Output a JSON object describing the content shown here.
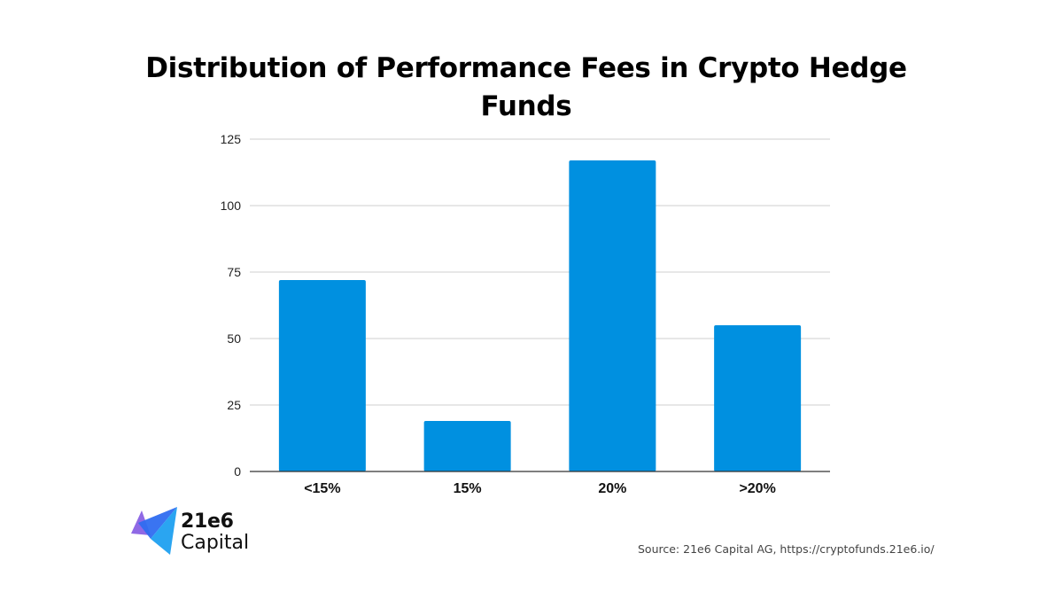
{
  "chart_data": {
    "type": "bar",
    "title_lines": [
      "Distribution of Performance Fees in Crypto Hedge",
      "Funds"
    ],
    "categories": [
      "<15%",
      "15%",
      "20%",
      ">20%"
    ],
    "values": [
      72,
      19,
      117,
      55
    ],
    "xlabel": "",
    "ylabel": "",
    "ylim": [
      0,
      125
    ],
    "yticks": [
      "0",
      "25",
      "50",
      "75",
      "100",
      "125"
    ],
    "grid": true,
    "legend": "none",
    "bar_color": "#0090e0",
    "grid_color": "#cfcfcf",
    "axis_color": "#333333"
  },
  "logo": {
    "line1": "21e6",
    "line2": "Capital",
    "colors": [
      "#7b4fe0",
      "#2f6df0",
      "#1fa0f0"
    ]
  },
  "source": "Source: 21e6 Capital AG, https://cryptofunds.21e6.io/"
}
